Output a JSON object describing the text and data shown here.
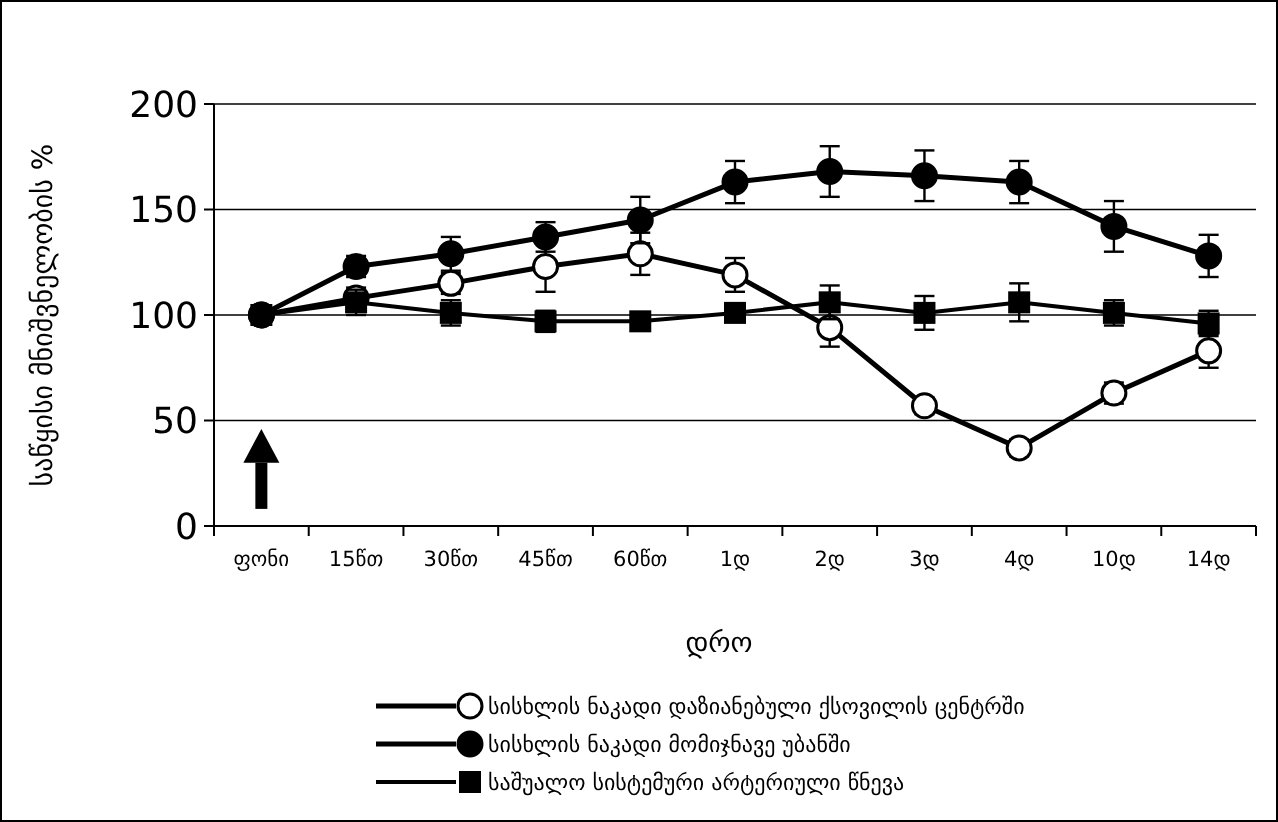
{
  "chart_data": {
    "type": "line",
    "ylabel": "საწყისი მნიშვნელობის %",
    "xlabel": "დრო",
    "categories": [
      "ფონი",
      "15წთ",
      "30წთ",
      "45წთ",
      "60წთ",
      "1დ",
      "2დ",
      "3დ",
      "4დ",
      "10დ",
      "14დ"
    ],
    "ylim": [
      0,
      200
    ],
    "yticks": [
      0,
      50,
      100,
      150,
      200
    ],
    "grid": "y",
    "legend": "bottom",
    "series": [
      {
        "name": "სისხლის ნაკადი დაზიანებული ქსოვილის ცენტრში",
        "color": "#ffffff",
        "marker": "circle",
        "values": [
          100,
          108,
          115,
          123,
          129,
          119,
          94,
          57,
          37,
          63,
          83
        ],
        "errors": [
          null,
          5,
          5,
          12,
          10,
          8,
          9,
          4,
          4,
          5,
          8
        ]
      },
      {
        "name": "სისხლის ნაკადი მომიჯნავე უბანში",
        "color": "#000000",
        "marker": "circle",
        "values": [
          100,
          123,
          129,
          137,
          145,
          163,
          168,
          166,
          163,
          142,
          128
        ],
        "errors": [
          null,
          5,
          8,
          7,
          11,
          10,
          12,
          12,
          10,
          12,
          10
        ]
      },
      {
        "name": "საშუალო სისტემური არტერიული წნევა",
        "color": "#000000",
        "marker": "square",
        "values": [
          100,
          106,
          101,
          97,
          97,
          101,
          106,
          101,
          106,
          101,
          96
        ],
        "errors": [
          null,
          6,
          6,
          5,
          4,
          4,
          8,
          8,
          9,
          6,
          6
        ]
      }
    ]
  }
}
